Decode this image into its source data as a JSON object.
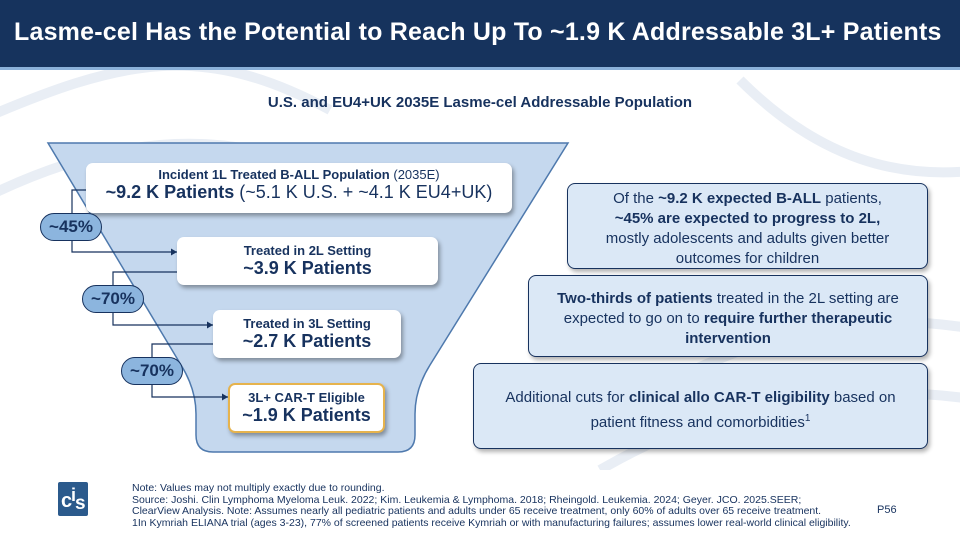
{
  "header": {
    "title": "Lasme-cel Has the Potential to Reach Up To ~1.9 K Addressable 3L+ Patients"
  },
  "subtitle": "U.S. and EU4+UK 2035E Lasme-cel Addressable Population",
  "funnel": {
    "stage1": {
      "label_bold": "Incident 1L Treated B-ALL Population",
      "label_norm": " (2035E)",
      "value_bold": "~9.2 K Patients",
      "value_norm": " (~5.1 K U.S. + ~4.1 K EU4+UK)"
    },
    "stage2": {
      "label": "Treated in 2L Setting",
      "value": "~3.9 K Patients"
    },
    "stage3": {
      "label": "Treated in 3L Setting",
      "value": "~2.7 K Patients"
    },
    "stage4": {
      "label": "3L+ CAR-T Eligible",
      "value": "~1.9 K Patients"
    },
    "pct1": "~45%",
    "pct2": "~70%",
    "pct3": "~70%"
  },
  "callouts": {
    "c1": {
      "p1": "Of the ",
      "b1": "~9.2 K expected B-ALL",
      "p2": " patients,",
      "b2": "~45% are expected to progress to 2L,",
      "p3": "mostly adolescents and adults given better",
      "p4": "outcomes for children"
    },
    "c2": {
      "b1": "Two-thirds of patients",
      "p1": " treated in the 2L setting are",
      "p2": "expected to go on to ",
      "b2": "require further therapeutic",
      "b3": "intervention"
    },
    "c3": {
      "p1": "Additional cuts for ",
      "b1": "clinical allo CAR-T eligibility",
      "p2": " based on",
      "p3": "patient fitness and comorbidities",
      "sup": "1"
    }
  },
  "logo": {
    "text1": "c",
    "text2": "i",
    "text3": "s"
  },
  "notes": [
    "Note: Values may not multiply exactly due to rounding.",
    "Source: Joshi. Clin Lymphoma Myeloma Leuk. 2022; Kim. Leukemia & Lymphoma. 2018; Rheingold. Leukemia. 2024; Geyer. JCO. 2025.SEER;",
    "ClearView Analysis. Note: Assumes nearly all pediatric patients and adults under 65 receive treatment, only 60% of adults over 65 receive treatment.",
    "1In Kymriah ELIANA trial (ages 3-23), 77% of screened patients receive Kymriah or with manufacturing failures; assumes lower real-world clinical eligibility."
  ],
  "page_number": "P56",
  "colors": {
    "header": "#16335d",
    "accent_light": "#8cb5de",
    "callout_fill": "#dbe8f6",
    "funnel_fill": "#c5d8ee",
    "eligible_border": "#e6b34d"
  }
}
